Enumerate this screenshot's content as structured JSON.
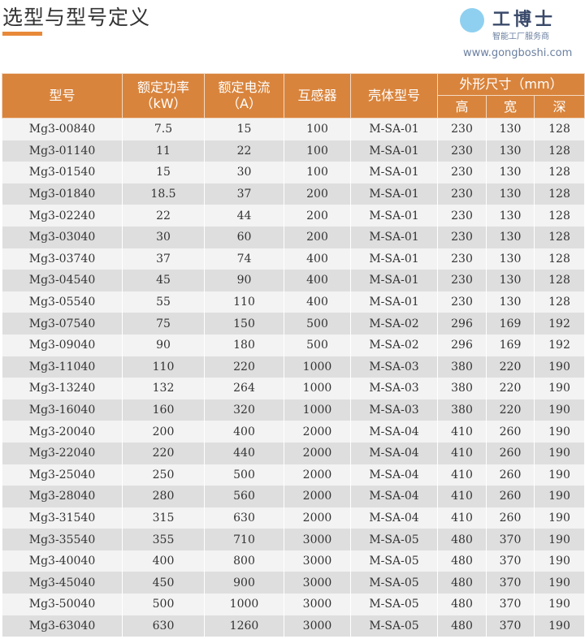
{
  "title": "选型与型号定义",
  "accent": "#d9843c",
  "table": {
    "headers": {
      "model": "型号",
      "power": "额定功率",
      "power_unit": "（kW）",
      "current": "额定电流",
      "current_unit": "（A）",
      "ct": "互感器",
      "housing": "壳体型号",
      "dims": "外形尺寸（mm）",
      "h": "高",
      "w": "宽",
      "d": "深"
    },
    "rows": [
      [
        "Mg3-00840",
        "7.5",
        "15",
        "100",
        "M-SA-01",
        "230",
        "130",
        "128"
      ],
      [
        "Mg3-01140",
        "11",
        "22",
        "100",
        "M-SA-01",
        "230",
        "130",
        "128"
      ],
      [
        "Mg3-01540",
        "15",
        "30",
        "100",
        "M-SA-01",
        "230",
        "130",
        "128"
      ],
      [
        "Mg3-01840",
        "18.5",
        "37",
        "200",
        "M-SA-01",
        "230",
        "130",
        "128"
      ],
      [
        "Mg3-02240",
        "22",
        "44",
        "200",
        "M-SA-01",
        "230",
        "130",
        "128"
      ],
      [
        "Mg3-03040",
        "30",
        "60",
        "200",
        "M-SA-01",
        "230",
        "130",
        "128"
      ],
      [
        "Mg3-03740",
        "37",
        "74",
        "400",
        "M-SA-01",
        "230",
        "130",
        "128"
      ],
      [
        "Mg3-04540",
        "45",
        "90",
        "400",
        "M-SA-01",
        "230",
        "130",
        "128"
      ],
      [
        "Mg3-05540",
        "55",
        "110",
        "400",
        "M-SA-01",
        "230",
        "130",
        "128"
      ],
      [
        "Mg3-07540",
        "75",
        "150",
        "500",
        "M-SA-02",
        "296",
        "169",
        "192"
      ],
      [
        "Mg3-09040",
        "90",
        "180",
        "500",
        "M-SA-02",
        "296",
        "169",
        "192"
      ],
      [
        "Mg3-11040",
        "110",
        "220",
        "1000",
        "M-SA-03",
        "380",
        "220",
        "190"
      ],
      [
        "Mg3-13240",
        "132",
        "264",
        "1000",
        "M-SA-03",
        "380",
        "220",
        "190"
      ],
      [
        "Mg3-16040",
        "160",
        "320",
        "1000",
        "M-SA-03",
        "380",
        "220",
        "190"
      ],
      [
        "Mg3-20040",
        "200",
        "400",
        "2000",
        "M-SA-04",
        "410",
        "260",
        "190"
      ],
      [
        "Mg3-22040",
        "220",
        "440",
        "2000",
        "M-SA-04",
        "410",
        "260",
        "190"
      ],
      [
        "Mg3-25040",
        "250",
        "500",
        "2000",
        "M-SA-04",
        "410",
        "260",
        "190"
      ],
      [
        "Mg3-28040",
        "280",
        "560",
        "2000",
        "M-SA-04",
        "410",
        "260",
        "190"
      ],
      [
        "Mg3-31540",
        "315",
        "630",
        "2000",
        "M-SA-04",
        "410",
        "260",
        "190"
      ],
      [
        "Mg3-35540",
        "355",
        "710",
        "3000",
        "M-SA-05",
        "480",
        "370",
        "190"
      ],
      [
        "Mg3-40040",
        "400",
        "800",
        "3000",
        "M-SA-05",
        "480",
        "370",
        "190"
      ],
      [
        "Mg3-45040",
        "450",
        "900",
        "3000",
        "M-SA-05",
        "480",
        "370",
        "190"
      ],
      [
        "Mg3-50040",
        "500",
        "1000",
        "3000",
        "M-SA-05",
        "480",
        "370",
        "190"
      ],
      [
        "Mg3-63040",
        "630",
        "1260",
        "3000",
        "M-SA-05",
        "480",
        "370",
        "190"
      ]
    ]
  },
  "watermark": {
    "brand": "工博士",
    "tagline": "智能工厂服务商",
    "url": "www.gongboshi.com"
  }
}
